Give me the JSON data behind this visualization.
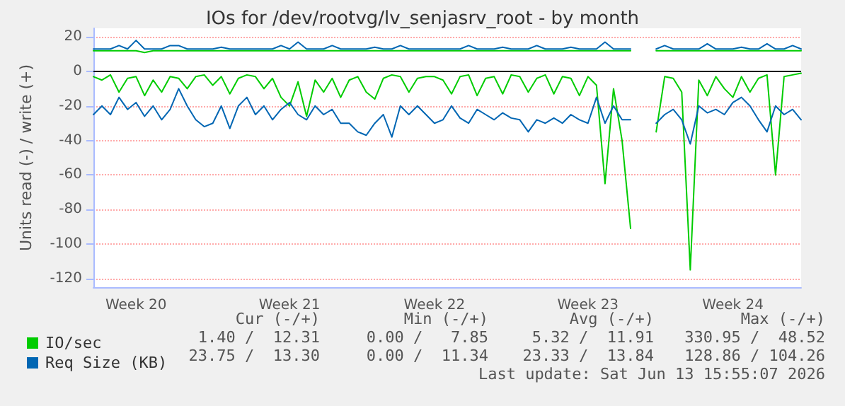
{
  "chart_data": {
    "type": "line",
    "title": "IOs for /dev/rootvg/lv_senjasrv_root - by month",
    "ylabel": "Units read (-) / write (+)",
    "categories": [
      null,
      null,
      null,
      null,
      null,
      "Week 20",
      null,
      null,
      null,
      null,
      null,
      null,
      null,
      null,
      null,
      null,
      null,
      null,
      null,
      null,
      null,
      null,
      null,
      "Week 21",
      null,
      null,
      null,
      null,
      null,
      null,
      null,
      null,
      null,
      null,
      null,
      null,
      null,
      null,
      null,
      null,
      "Week 22",
      null,
      null,
      null,
      null,
      null,
      null,
      null,
      null,
      null,
      null,
      null,
      null,
      null,
      null,
      null,
      null,
      null,
      "Week 23",
      null,
      null,
      null,
      null,
      null,
      null,
      null,
      null,
      null,
      null,
      null,
      null,
      null,
      null,
      null,
      null,
      "Week 24",
      null,
      null,
      null,
      null,
      null,
      null,
      null,
      null
    ],
    "series": [
      {
        "name": "IO/sec",
        "color": "#00cc00",
        "values": [
          -3,
          -5,
          -2,
          -12,
          -4,
          -3,
          -14,
          -5,
          -12,
          -3,
          -4,
          -10,
          -3,
          -2,
          -8,
          -3,
          -13,
          -4,
          -2,
          -3,
          -10,
          -4,
          -15,
          -20,
          -6,
          -26,
          -5,
          -12,
          -4,
          -15,
          -5,
          -3,
          -12,
          -16,
          -4,
          -2,
          -3,
          -12,
          -4,
          -3,
          -3,
          -5,
          -13,
          -3,
          -2,
          -14,
          -4,
          -3,
          -13,
          -2,
          -3,
          -12,
          -4,
          -2,
          -13,
          -3,
          -4,
          -14,
          -3,
          -8,
          -65,
          -10,
          -40,
          -91,
          null,
          null,
          -35,
          -3,
          -4,
          -12,
          -115,
          -5,
          -14,
          -3,
          -10,
          -15,
          -3,
          -12,
          -4,
          -2,
          -60,
          -3,
          -2,
          -1
        ]
      },
      {
        "color": "#00cc00",
        "values": [
          12,
          12,
          12,
          12,
          12,
          12,
          11,
          12,
          12,
          12,
          12,
          12,
          12,
          12,
          12,
          12,
          12,
          12,
          12,
          12,
          12,
          12,
          12,
          12,
          12,
          12,
          12,
          12,
          12,
          12,
          12,
          12,
          12,
          12,
          12,
          12,
          12,
          12,
          12,
          12,
          12,
          12,
          12,
          12,
          12,
          12,
          12,
          12,
          12,
          12,
          12,
          12,
          12,
          12,
          12,
          12,
          12,
          12,
          12,
          12,
          12,
          12,
          12,
          12,
          null,
          null,
          12,
          12,
          12,
          12,
          12,
          12,
          12,
          12,
          12,
          12,
          12,
          12,
          12,
          12,
          12,
          12,
          12,
          12
        ]
      },
      {
        "name": "Req Size (KB)",
        "color": "#0066b3",
        "values": [
          -25,
          -20,
          -25,
          -15,
          -22,
          -18,
          -26,
          -20,
          -28,
          -22,
          -10,
          -20,
          -28,
          -32,
          -30,
          -20,
          -33,
          -20,
          -15,
          -25,
          -20,
          -28,
          -22,
          -18,
          -25,
          -28,
          -20,
          -25,
          -22,
          -30,
          -30,
          -35,
          -37,
          -30,
          -25,
          -38,
          -20,
          -25,
          -20,
          -25,
          -30,
          -28,
          -20,
          -27,
          -30,
          -22,
          -25,
          -28,
          -24,
          -27,
          -28,
          -35,
          -28,
          -30,
          -27,
          -30,
          -25,
          -28,
          -30,
          -15,
          -30,
          -20,
          -28,
          -28,
          null,
          null,
          -30,
          -25,
          -22,
          -28,
          -42,
          -20,
          -24,
          -22,
          -25,
          -18,
          -15,
          -20,
          -28,
          -35,
          -20,
          -25,
          -22,
          -28
        ]
      },
      {
        "color": "#0066b3",
        "values": [
          13,
          13,
          13,
          15,
          13,
          18,
          13,
          13,
          13,
          15,
          15,
          13,
          13,
          13,
          13,
          14,
          13,
          13,
          13,
          13,
          13,
          13,
          15,
          13,
          17,
          13,
          13,
          13,
          15,
          13,
          13,
          13,
          13,
          14,
          13,
          13,
          15,
          13,
          13,
          13,
          13,
          13,
          13,
          13,
          15,
          13,
          13,
          13,
          14,
          13,
          13,
          13,
          15,
          13,
          13,
          13,
          14,
          13,
          13,
          13,
          17,
          13,
          13,
          13,
          null,
          null,
          13,
          15,
          13,
          13,
          13,
          13,
          16,
          13,
          13,
          13,
          14,
          13,
          13,
          16,
          13,
          13,
          15,
          13
        ]
      }
    ],
    "ylim": [
      -125,
      25
    ],
    "yticks": [
      -120,
      -100,
      -80,
      -60,
      -40,
      -20,
      0,
      20
    ],
    "ref_lines": [
      {
        "axis": "y",
        "value": 0,
        "color": "#000000"
      }
    ],
    "grid": "y",
    "legend": "bottom left",
    "marker": "none",
    "line_style": "solid",
    "annotations": [
      "Cur (-/+)",
      "Min (-/+)",
      "Avg (-/+)",
      "Max (-/+)",
      "1.40 /  12.31",
      "0.00 /   7.85",
      "5.32 /  11.91",
      "330.95 /  48.52",
      "23.75 /  13.30",
      "0.00 /  11.34",
      "23.33 /  13.84",
      "128.86 / 104.26",
      "Last update: Sat Jun 13 15:55:07 2026"
    ]
  }
}
